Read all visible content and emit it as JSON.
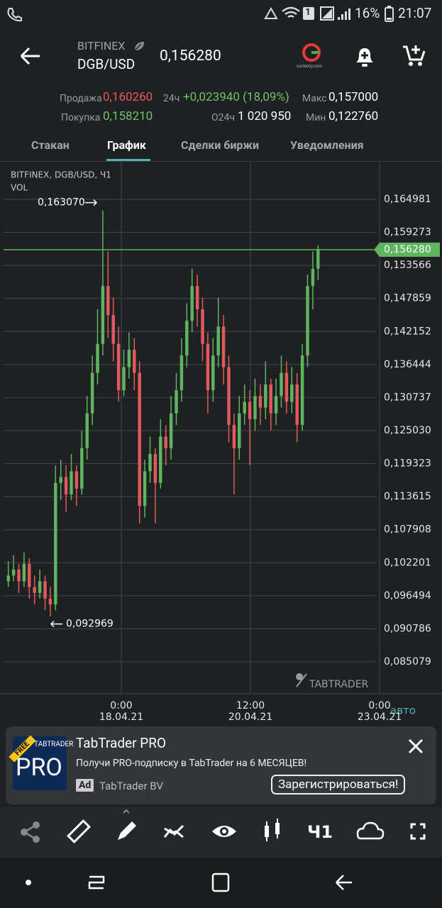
{
  "status_bar": {
    "battery": "16%",
    "time": "21:07",
    "sim": "1"
  },
  "header": {
    "exchange": "BITFINEX",
    "pair": "DGB/USD",
    "price": "0,156280",
    "partner": "currency.com"
  },
  "stats": {
    "sell_label": "Продажа",
    "sell": "0,160260",
    "change_label": "24ч",
    "change": "+0,023940 (18,09%)",
    "max_label": "Макс",
    "max": "0,157000",
    "buy_label": "Покупка",
    "buy": "0,158210",
    "volume_label": "O24ч",
    "volume": "1 020 950",
    "min_label": "Мин",
    "min": "0,122760"
  },
  "tabs": [
    "Стакан",
    "График",
    "Сделки биржи",
    "Уведомления"
  ],
  "chart_data": {
    "type": "candlestick",
    "info": "BITFINEX, DGB/USD, Ч1",
    "volume_label": "VOL",
    "watermark": "TABTRADER",
    "scale_mode": "авто",
    "up_color": "#5fb55f",
    "down_color": "#e05a5e",
    "grid": true,
    "ylim": [
      0.079568,
      0.170982
    ],
    "yticks": [
      {
        "value": 0.164981,
        "label": "0,164981"
      },
      {
        "value": 0.159273,
        "label": "0,159273"
      },
      {
        "value": 0.153566,
        "label": "0,153566"
      },
      {
        "value": 0.147859,
        "label": "0,147859"
      },
      {
        "value": 0.142152,
        "label": "0,142152"
      },
      {
        "value": 0.136444,
        "label": "0,136444"
      },
      {
        "value": 0.130737,
        "label": "0,130737"
      },
      {
        "value": 0.12503,
        "label": "0,125030"
      },
      {
        "value": 0.119323,
        "label": "0,119323"
      },
      {
        "value": 0.113615,
        "label": "0,113615"
      },
      {
        "value": 0.107908,
        "label": "0,107908"
      },
      {
        "value": 0.102201,
        "label": "0,102201"
      },
      {
        "value": 0.096494,
        "label": "0,096494"
      },
      {
        "value": 0.090786,
        "label": "0,090786"
      },
      {
        "value": 0.085079,
        "label": "0,085079"
      }
    ],
    "x_labels": [
      {
        "time": "0:00",
        "date": "18.04.21"
      },
      {
        "time": "12:00",
        "date": "20.04.21"
      },
      {
        "time": "0:00",
        "date": "23.04.21"
      }
    ],
    "high_marker": {
      "value": 0.16307,
      "label": "0,163070"
    },
    "low_marker": {
      "value": 0.092969,
      "label": "0,092969"
    },
    "last_price": {
      "value": 0.15628,
      "label": "0,156280"
    },
    "ohlc": [
      [
        0.099,
        0.1025,
        0.098,
        0.1
      ],
      [
        0.1,
        0.1035,
        0.099,
        0.101
      ],
      [
        0.101,
        0.102,
        0.097,
        0.099
      ],
      [
        0.099,
        0.104,
        0.098,
        0.102
      ],
      [
        0.102,
        0.103,
        0.096,
        0.098
      ],
      [
        0.098,
        0.1,
        0.095,
        0.097
      ],
      [
        0.097,
        0.101,
        0.096,
        0.099
      ],
      [
        0.099,
        0.1,
        0.094,
        0.096
      ],
      [
        0.096,
        0.098,
        0.092969,
        0.095
      ],
      [
        0.095,
        0.119,
        0.094,
        0.116
      ],
      [
        0.116,
        0.12,
        0.113,
        0.117
      ],
      [
        0.117,
        0.119,
        0.111,
        0.114
      ],
      [
        0.114,
        0.121,
        0.113,
        0.118
      ],
      [
        0.118,
        0.119,
        0.112,
        0.115
      ],
      [
        0.115,
        0.125,
        0.114,
        0.122
      ],
      [
        0.122,
        0.131,
        0.12,
        0.128
      ],
      [
        0.128,
        0.138,
        0.126,
        0.135
      ],
      [
        0.135,
        0.146,
        0.133,
        0.14
      ],
      [
        0.14,
        0.16307,
        0.138,
        0.15
      ],
      [
        0.15,
        0.156,
        0.141,
        0.145
      ],
      [
        0.145,
        0.148,
        0.137,
        0.14
      ],
      [
        0.14,
        0.143,
        0.13,
        0.132
      ],
      [
        0.132,
        0.139,
        0.131,
        0.136
      ],
      [
        0.136,
        0.142,
        0.134,
        0.139
      ],
      [
        0.139,
        0.141,
        0.132,
        0.135
      ],
      [
        0.135,
        0.137,
        0.109,
        0.112
      ],
      [
        0.112,
        0.12,
        0.11,
        0.118
      ],
      [
        0.118,
        0.124,
        0.116,
        0.121
      ],
      [
        0.121,
        0.122,
        0.109,
        0.116
      ],
      [
        0.116,
        0.127,
        0.115,
        0.124
      ],
      [
        0.124,
        0.126,
        0.119,
        0.122
      ],
      [
        0.122,
        0.131,
        0.12,
        0.128
      ],
      [
        0.128,
        0.135,
        0.126,
        0.132
      ],
      [
        0.132,
        0.141,
        0.13,
        0.138
      ],
      [
        0.138,
        0.147,
        0.136,
        0.144
      ],
      [
        0.144,
        0.153,
        0.142,
        0.15
      ],
      [
        0.15,
        0.152,
        0.143,
        0.146
      ],
      [
        0.146,
        0.148,
        0.137,
        0.14
      ],
      [
        0.14,
        0.142,
        0.128,
        0.132
      ],
      [
        0.132,
        0.141,
        0.13,
        0.138
      ],
      [
        0.138,
        0.148,
        0.136,
        0.143
      ],
      [
        0.143,
        0.145,
        0.133,
        0.136
      ],
      [
        0.136,
        0.138,
        0.123,
        0.126
      ],
      [
        0.126,
        0.128,
        0.114,
        0.122
      ],
      [
        0.122,
        0.131,
        0.12,
        0.128
      ],
      [
        0.128,
        0.133,
        0.126,
        0.13
      ],
      [
        0.13,
        0.132,
        0.119,
        0.127
      ],
      [
        0.127,
        0.134,
        0.125,
        0.131
      ],
      [
        0.131,
        0.133,
        0.126,
        0.129
      ],
      [
        0.129,
        0.137,
        0.127,
        0.133
      ],
      [
        0.133,
        0.134,
        0.125,
        0.128
      ],
      [
        0.128,
        0.134,
        0.126,
        0.131
      ],
      [
        0.131,
        0.138,
        0.129,
        0.135
      ],
      [
        0.135,
        0.137,
        0.128,
        0.13
      ],
      [
        0.13,
        0.136,
        0.128,
        0.133
      ],
      [
        0.133,
        0.135,
        0.123,
        0.126
      ],
      [
        0.126,
        0.14,
        0.125,
        0.138
      ],
      [
        0.138,
        0.152,
        0.136,
        0.15
      ],
      [
        0.15,
        0.156,
        0.146,
        0.153
      ],
      [
        0.153,
        0.157,
        0.151,
        0.15628
      ]
    ]
  },
  "ad": {
    "badge": "FREE",
    "logo_top": "TABTRADER",
    "logo": "PRO",
    "title": "TabTrader PRO",
    "text": "Получи PRO-подписку в TabTrader на 6 МЕСЯЦЕВ!",
    "ad_label": "Ad",
    "advertiser": "TabTrader BV",
    "button": "Зарегистрироваться!"
  },
  "toolbar": {
    "interval": "Ч1"
  }
}
